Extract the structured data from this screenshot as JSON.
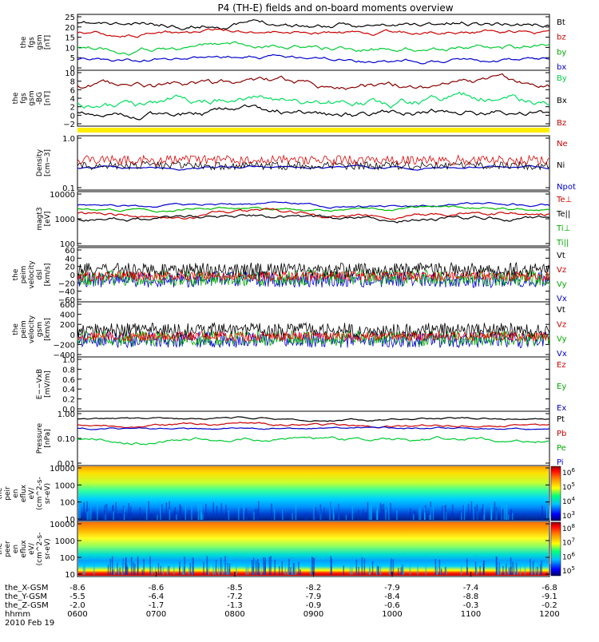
{
  "title": "P4 (TH-E) fields and on-board moments overview",
  "footer": {
    "rows": [
      {
        "label": "the_X-GSM",
        "values": [
          "-8.6",
          "-8.6",
          "-8.5",
          "-8.2",
          "-7.9",
          "-7.4",
          "-6.8"
        ]
      },
      {
        "label": "the_Y-GSM",
        "values": [
          "-5.5",
          "-6.4",
          "-7.2",
          "-7.9",
          "-8.4",
          "-8.8",
          "-9.1"
        ]
      },
      {
        "label": "the_Z-GSM",
        "values": [
          "-2.0",
          "-1.7",
          "-1.3",
          "-0.9",
          "-0.6",
          "-0.3",
          "-0.2"
        ]
      },
      {
        "label": "hhmm",
        "values": [
          "0600",
          "0700",
          "0800",
          "0900",
          "1000",
          "1100",
          "1200"
        ]
      }
    ],
    "date": "2010 Feb 19"
  },
  "chart_data": [
    {
      "type": "line",
      "ylabel": [
        "the",
        "fgs",
        "gsm",
        "[nT]"
      ],
      "yticks": [
        "0",
        "5",
        "10",
        "15",
        "20",
        "25"
      ],
      "ylim": [
        0,
        27
      ],
      "legend": [
        {
          "label": "Bt",
          "color": "#000000"
        },
        {
          "label": "bz",
          "color": "#cc0000"
        },
        {
          "label": "by",
          "color": "#00aa00"
        },
        {
          "label": "bx",
          "color": "#0000cc"
        }
      ]
    },
    {
      "type": "line",
      "ylabel": [
        "the",
        "fgs",
        "gsm",
        "-BG",
        "[nT]"
      ],
      "yticks": [
        "−2",
        "0",
        "2",
        "4",
        "6",
        "8",
        "10"
      ],
      "ylim": [
        -3,
        10
      ],
      "legend": [
        {
          "label": "By",
          "color": "#00cc44"
        },
        {
          "label": "Bx",
          "color": "#000000"
        },
        {
          "label": "Bz",
          "color": "#cc0000"
        }
      ]
    },
    {
      "type": "line",
      "ylabel": [
        "Density",
        "[cm−3]"
      ],
      "yticks": [
        "0.1",
        "1.0"
      ],
      "scale": "log",
      "legend": [
        {
          "label": "Ne",
          "color": "#cc0000"
        },
        {
          "label": "Ni",
          "color": "#000000"
        },
        {
          "label": "Npot",
          "color": "#0000cc"
        }
      ]
    },
    {
      "type": "line",
      "ylabel": [
        "magt3",
        "[eV]"
      ],
      "yticks": [
        "100",
        "1000",
        "10000"
      ],
      "scale": "log",
      "legend": [
        {
          "label": "Te⊥",
          "color": "#cc0000"
        },
        {
          "label": "Te||",
          "color": "#000000"
        },
        {
          "label": "Ti⊥",
          "color": "#00aa00"
        },
        {
          "label": "Ti||",
          "color": "#00aa00"
        }
      ]
    },
    {
      "type": "line",
      "ylabel": [
        "the",
        "peim",
        "velocity",
        "dsl",
        "[km/s]"
      ],
      "yticks": [
        "−60",
        "−40",
        "−20",
        "0",
        "20",
        "40",
        "60"
      ],
      "ylim": [
        -60,
        60
      ],
      "legend": [
        {
          "label": "Vt",
          "color": "#000000"
        },
        {
          "label": "Vz",
          "color": "#cc0000"
        },
        {
          "label": "Vy",
          "color": "#00aa00"
        },
        {
          "label": "Vx",
          "color": "#0000cc"
        }
      ]
    },
    {
      "type": "line",
      "ylabel": [
        "the",
        "peim",
        "velocity",
        "gsm",
        "[km/s]"
      ],
      "yticks": [
        "−400",
        "−200",
        "0",
        "200",
        "400",
        "600"
      ],
      "ylim": [
        -400,
        600
      ],
      "legend": [
        {
          "label": "Vt",
          "color": "#000000"
        },
        {
          "label": "Vz",
          "color": "#cc0000"
        },
        {
          "label": "Vy",
          "color": "#00aa00"
        },
        {
          "label": "Vx",
          "color": "#0000cc"
        }
      ]
    },
    {
      "type": "line",
      "ylabel": [
        "E−−VxB",
        "[mV/m]"
      ],
      "yticks": [
        "0.0",
        "0.2",
        "0.4",
        "0.6",
        "0.8",
        "1.0"
      ],
      "ylim": [
        0,
        1
      ],
      "legend": [
        {
          "label": "Ez",
          "color": "#cc0000"
        },
        {
          "label": "Ey",
          "color": "#00aa00"
        },
        {
          "label": "Ex",
          "color": "#0000cc"
        }
      ]
    },
    {
      "type": "line",
      "ylabel": [
        "Pressure",
        "[nPa]"
      ],
      "yticks": [
        "0.01",
        "0.10",
        "1.00"
      ],
      "scale": "log",
      "legend": [
        {
          "label": "Pt",
          "color": "#000000"
        },
        {
          "label": "Pb",
          "color": "#cc0000"
        },
        {
          "label": "Pe",
          "color": "#00aa00"
        },
        {
          "label": "Pi",
          "color": "#0000cc"
        }
      ]
    },
    {
      "type": "heatmap",
      "ylabel": [
        "the",
        "peir",
        "en",
        "eflux",
        "eV/",
        "(cm^2-s-",
        "sr-eV)"
      ],
      "yticks": [
        "10",
        "100",
        "1000",
        "10000"
      ],
      "scale": "log",
      "colorbar": {
        "ticks": [
          "10^3",
          "10^4",
          "10^5",
          "10^6"
        ]
      }
    },
    {
      "type": "heatmap",
      "ylabel": [
        "the",
        "peer",
        "en",
        "eflux",
        "eV/",
        "(cm^2-s-",
        "sr-eV)"
      ],
      "yticks": [
        "10",
        "100",
        "1000",
        "10000"
      ],
      "scale": "log",
      "colorbar": {
        "ticks": [
          "10^5",
          "10^6",
          "10^7",
          "10^8"
        ]
      }
    }
  ]
}
